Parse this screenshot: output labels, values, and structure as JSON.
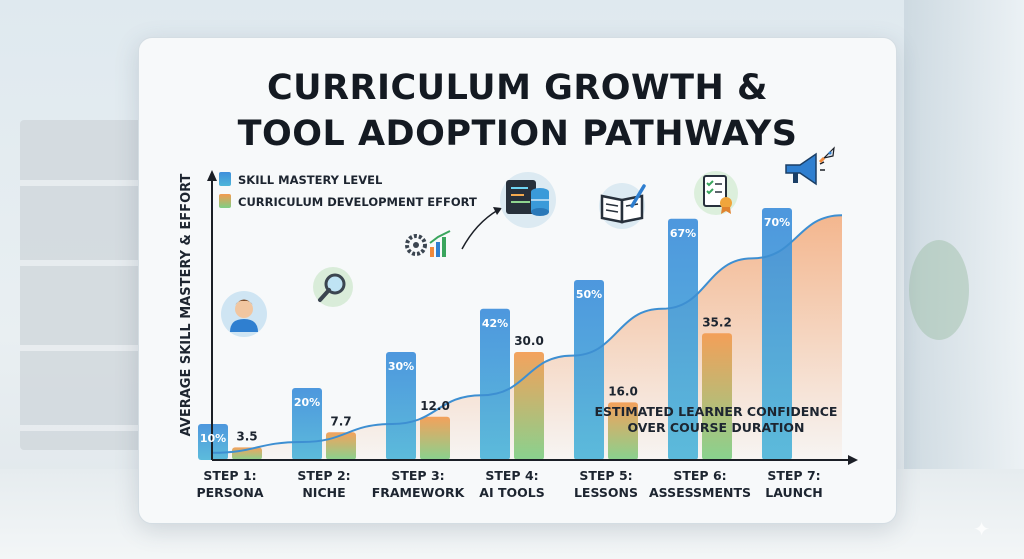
{
  "page": {
    "title_line1": "CURRICULUM GROWTH &",
    "title_line2": "TOOL ADOPTION PATHWAYS",
    "annotation_line1": "ESTIMATED LEARNER CONFIDENCE",
    "annotation_line2": "OVER COURSE DURATION"
  },
  "colors": {
    "mastery_top": "#3f8fdb",
    "mastery_bottom": "#4fb6d9",
    "effort_top": "#f39b50",
    "effort_bottom": "#7fcf86",
    "confidence_curve": "#3d8fd2",
    "confidence_fill": "#f2a06a"
  },
  "icons": [
    "person-icon",
    "magnifier-icon",
    "gear-chart-icon",
    "code-database-icon",
    "book-icon",
    "checklist-icon",
    "megaphone-rocket-icon"
  ],
  "chart_data": {
    "type": "bar",
    "ylabel": "AVERAGE SKILL MASTERY & EFFORT",
    "xlabel": "",
    "ylim": [
      0,
      100
    ],
    "legend_position": "top-left",
    "categories": [
      [
        "STEP 1:",
        "PERSONA"
      ],
      [
        "STEP 2:",
        "NICHE"
      ],
      [
        "STEP 3:",
        "FRAMEWORK"
      ],
      [
        "STEP 4:",
        "AI TOOLS"
      ],
      [
        "STEP 5:",
        "LESSONS"
      ],
      [
        "STEP 6:",
        "ASSESSMENTS"
      ],
      [
        "STEP 7:",
        "LAUNCH"
      ]
    ],
    "series": [
      {
        "name": "SKILL MASTERY LEVEL",
        "values": [
          10,
          20,
          30,
          42,
          50,
          67,
          70
        ],
        "labels": [
          "10%",
          "20%",
          "30%",
          "42%",
          "50%",
          "67%",
          "70%"
        ]
      },
      {
        "name": "CURRICULUM DEVELOPMENT EFFORT",
        "values": [
          3.5,
          7.7,
          12.0,
          30.0,
          16.0,
          35.2,
          null
        ],
        "labels": [
          "3.5",
          "7.7",
          "12.0",
          "30.0",
          "16.0",
          "35.2",
          ""
        ]
      }
    ],
    "confidence_curve": [
      2,
      5,
      10,
      18,
      29,
      42,
      56,
      68
    ]
  }
}
